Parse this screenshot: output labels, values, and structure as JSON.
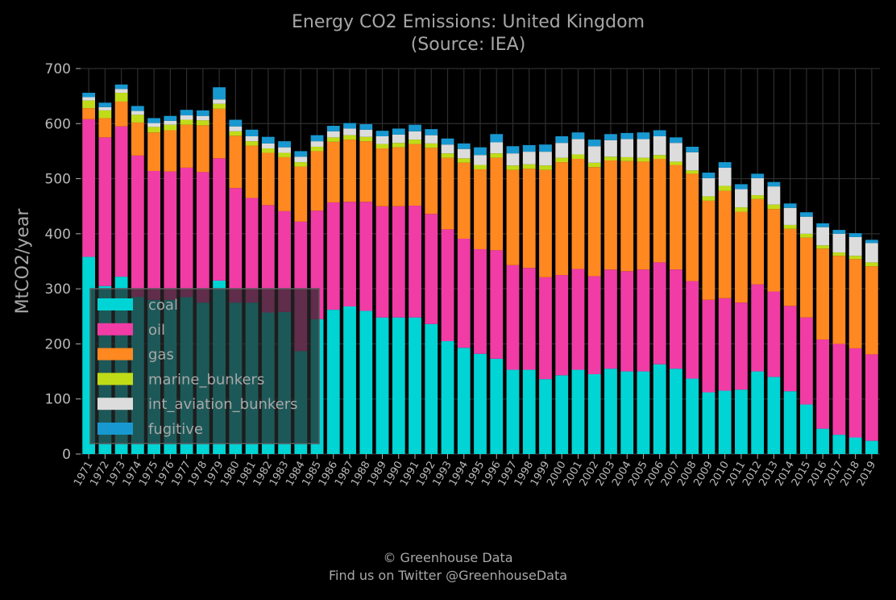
{
  "chart_data": {
    "type": "bar",
    "stacked": true,
    "title": "Energy CO2 Emissions: United Kingdom",
    "subtitle": "(Source: IEA)",
    "ylabel": "MtCO2/year",
    "xlabel": "",
    "ylim": [
      0,
      700
    ],
    "yticks": [
      0,
      100,
      200,
      300,
      400,
      500,
      600,
      700
    ],
    "grid": true,
    "legend_position": "bottom-left",
    "categories": [
      "1971",
      "1972",
      "1973",
      "1974",
      "1975",
      "1976",
      "1977",
      "1978",
      "1979",
      "1980",
      "1981",
      "1982",
      "1983",
      "1984",
      "1985",
      "1986",
      "1987",
      "1988",
      "1989",
      "1990",
      "1991",
      "1992",
      "1993",
      "1994",
      "1995",
      "1996",
      "1997",
      "1998",
      "1999",
      "2000",
      "2001",
      "2002",
      "2003",
      "2004",
      "2005",
      "2006",
      "2007",
      "2008",
      "2009",
      "2010",
      "2011",
      "2012",
      "2013",
      "2014",
      "2015",
      "2016",
      "2017",
      "2018",
      "2019"
    ],
    "series": [
      {
        "name": "coal",
        "color": "#00d4d4",
        "values": [
          358,
          305,
          322,
          285,
          280,
          280,
          285,
          275,
          315,
          275,
          275,
          257,
          258,
          187,
          245,
          262,
          268,
          260,
          248,
          248,
          248,
          236,
          205,
          193,
          182,
          173,
          153,
          153,
          136,
          143,
          153,
          145,
          155,
          150,
          150,
          163,
          155,
          137,
          112,
          115,
          117,
          150,
          140,
          114,
          90,
          46,
          35,
          30,
          24
        ]
      },
      {
        "name": "oil",
        "color": "#f03ca4",
        "values": [
          250,
          270,
          273,
          257,
          234,
          233,
          235,
          237,
          222,
          208,
          190,
          195,
          183,
          235,
          197,
          195,
          190,
          198,
          202,
          202,
          203,
          200,
          203,
          198,
          190,
          197,
          190,
          185,
          185,
          182,
          183,
          178,
          180,
          182,
          185,
          185,
          180,
          177,
          168,
          168,
          158,
          158,
          155,
          155,
          158,
          162,
          165,
          162,
          157
        ]
      },
      {
        "name": "gas",
        "color": "#ff8820",
        "values": [
          20,
          35,
          45,
          60,
          70,
          75,
          78,
          85,
          90,
          95,
          95,
          95,
          98,
          100,
          108,
          110,
          113,
          110,
          105,
          107,
          112,
          120,
          130,
          138,
          145,
          168,
          173,
          180,
          195,
          205,
          200,
          198,
          198,
          200,
          196,
          188,
          190,
          195,
          180,
          195,
          165,
          155,
          150,
          140,
          145,
          165,
          160,
          162,
          160
        ]
      },
      {
        "name": "marine_bunkers",
        "color": "#c0dc18",
        "values": [
          14,
          14,
          16,
          14,
          10,
          10,
          9,
          9,
          9,
          8,
          8,
          8,
          8,
          8,
          8,
          8,
          8,
          8,
          8,
          8,
          8,
          8,
          8,
          8,
          8,
          8,
          8,
          8,
          8,
          8,
          8,
          8,
          7,
          7,
          7,
          7,
          6,
          6,
          8,
          9,
          8,
          7,
          8,
          7,
          7,
          6,
          6,
          6,
          7
        ]
      },
      {
        "name": "int_aviation_bunkers",
        "color": "#dcdcdc",
        "values": [
          6,
          6,
          7,
          7,
          7,
          7,
          8,
          8,
          8,
          9,
          9,
          9,
          10,
          10,
          10,
          11,
          12,
          13,
          14,
          15,
          15,
          15,
          16,
          17,
          18,
          20,
          22,
          23,
          25,
          27,
          28,
          30,
          30,
          33,
          34,
          34,
          34,
          33,
          33,
          33,
          33,
          31,
          33,
          31,
          31,
          33,
          34,
          34,
          35
        ]
      },
      {
        "name": "fugitive",
        "color": "#1898d0",
        "values": [
          8,
          8,
          8,
          9,
          9,
          9,
          10,
          10,
          22,
          12,
          12,
          12,
          11,
          10,
          11,
          10,
          10,
          10,
          10,
          11,
          12,
          11,
          11,
          10,
          14,
          15,
          13,
          12,
          13,
          12,
          12,
          12,
          11,
          11,
          12,
          11,
          10,
          10,
          10,
          10,
          9,
          8,
          8,
          8,
          8,
          7,
          7,
          7,
          6
        ]
      }
    ]
  },
  "footer": {
    "line1": "© Greenhouse Data",
    "line2": "Find us on Twitter @GreenhouseData"
  }
}
